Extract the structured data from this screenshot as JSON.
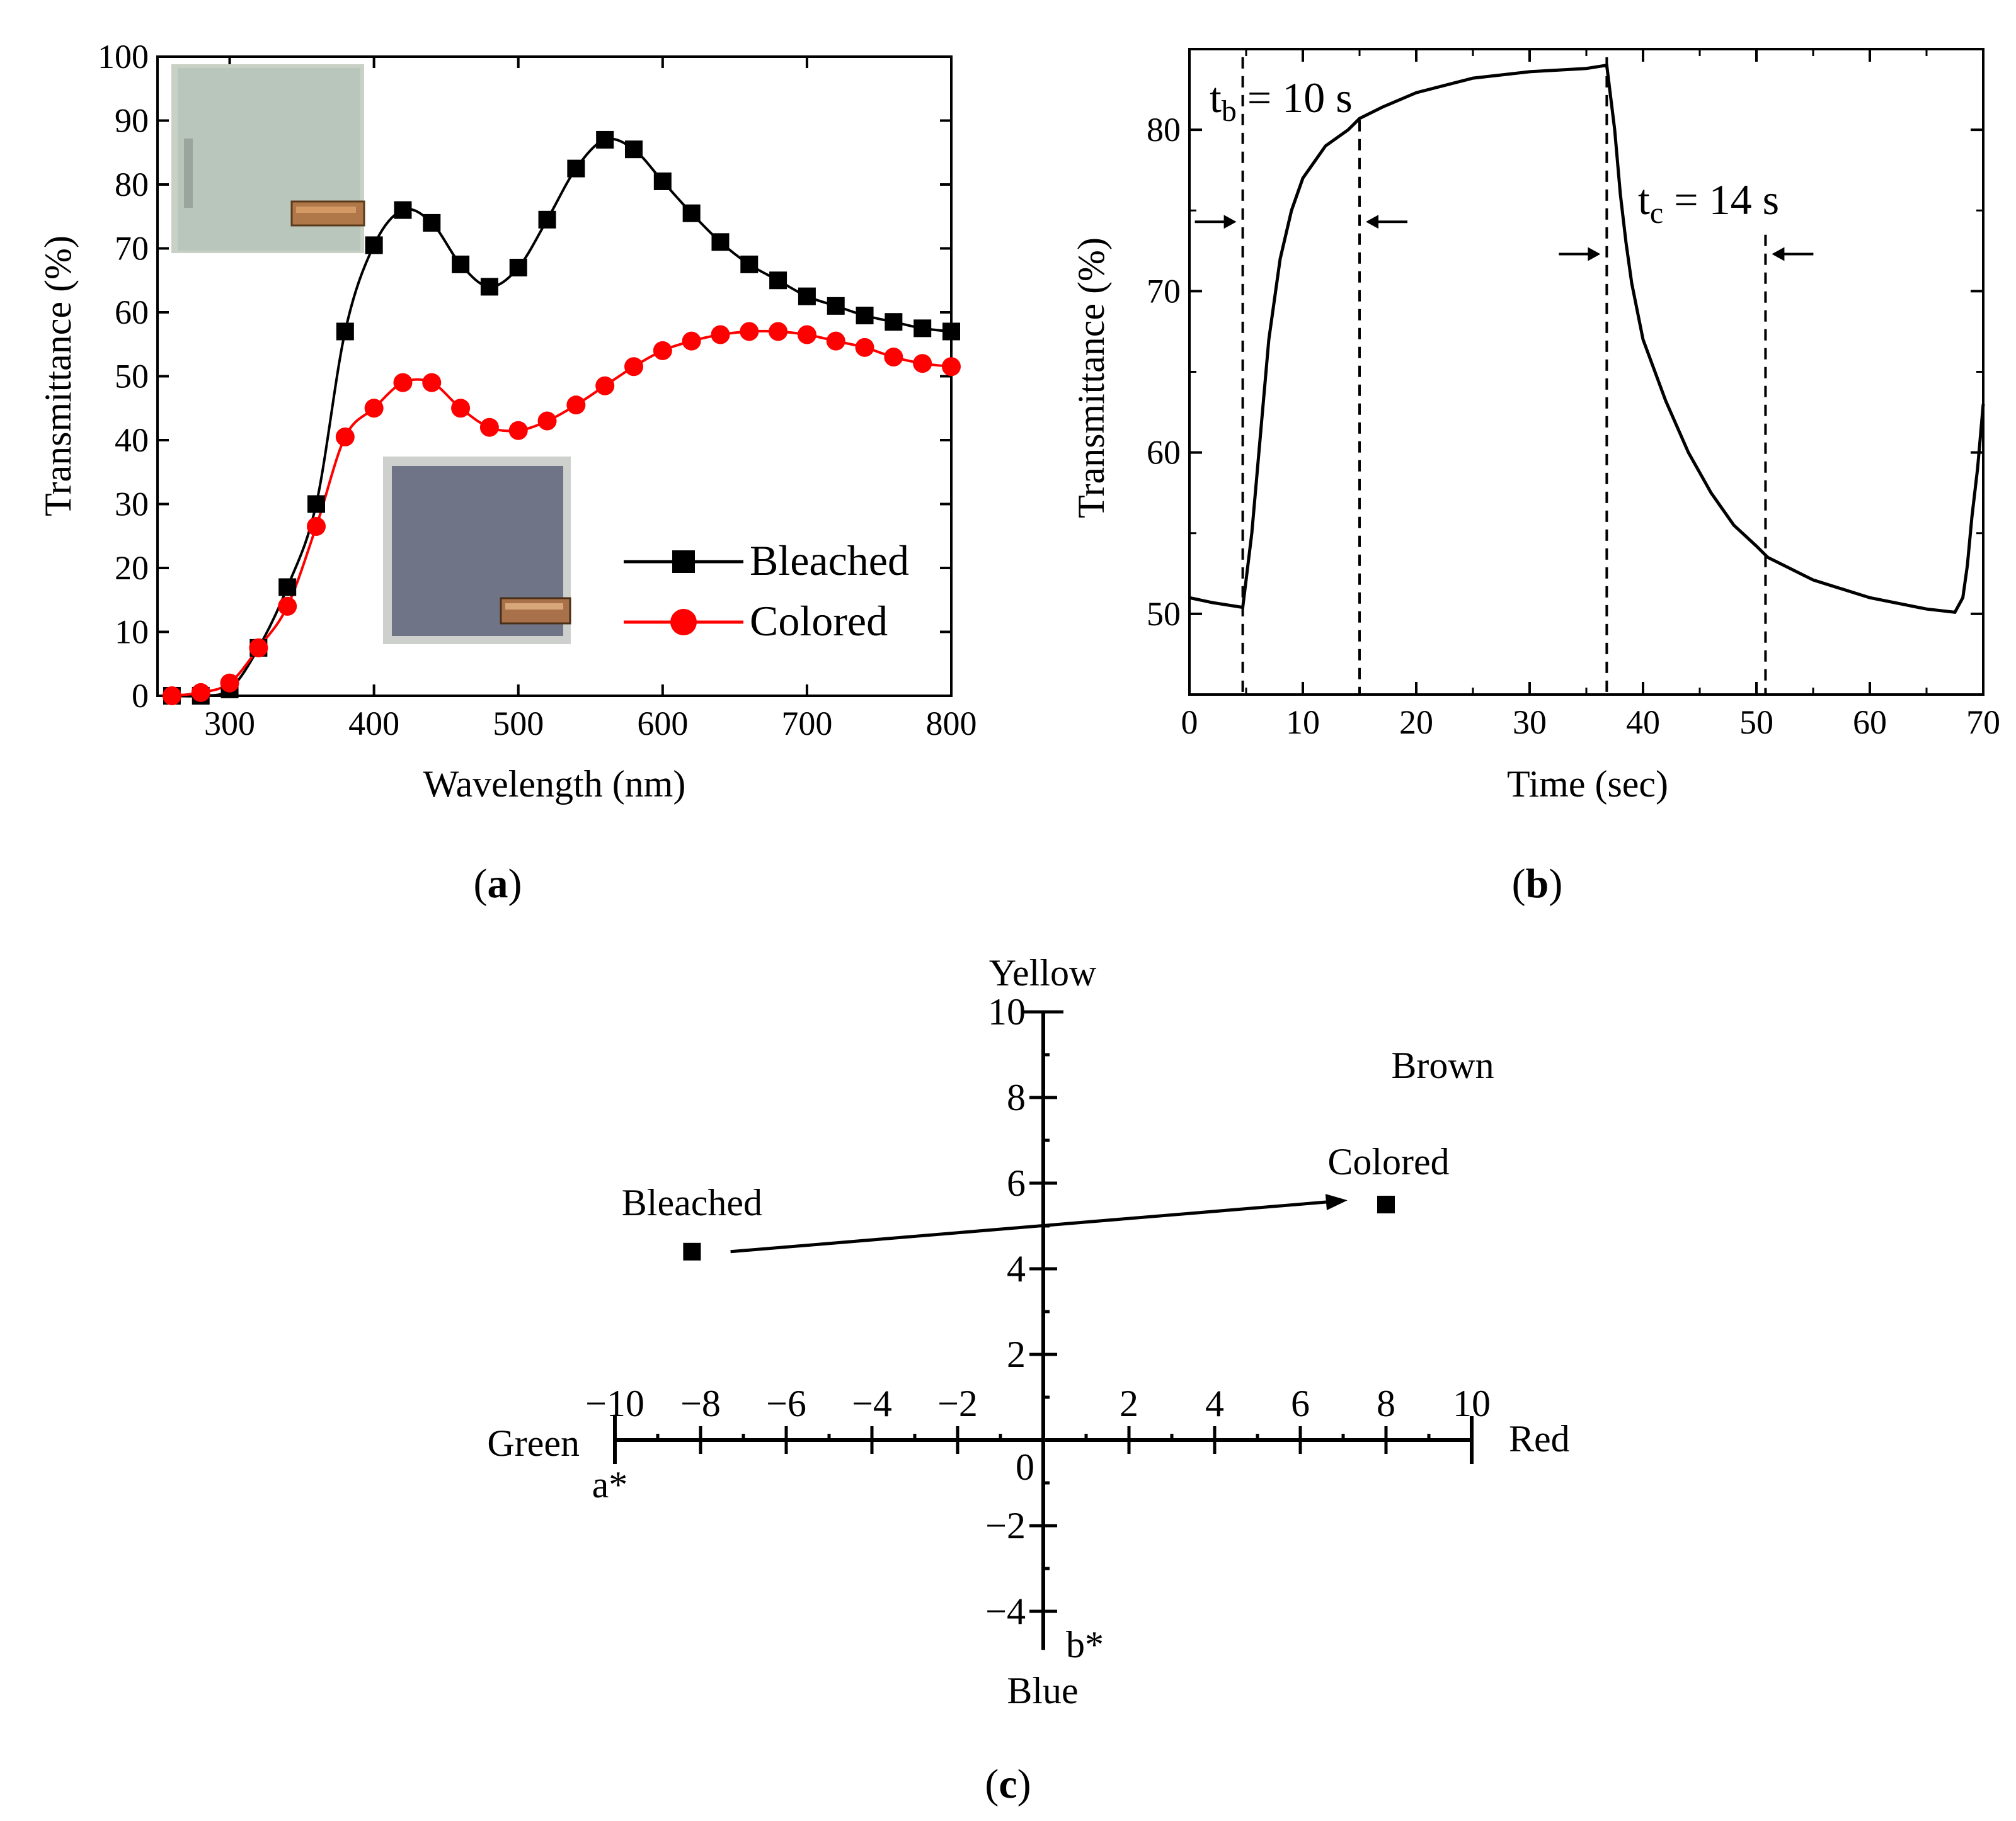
{
  "chart_data": [
    {
      "panel": "a",
      "type": "line",
      "caption": {
        "open": "(",
        "letter": "a",
        "close": ")"
      },
      "xlabel": "Wavelength (nm)",
      "ylabel": "Transmittance (%)",
      "xlim": [
        250,
        800
      ],
      "ylim": [
        0,
        100
      ],
      "xticks": [
        300,
        400,
        500,
        600,
        700,
        800
      ],
      "yticks": [
        0,
        10,
        20,
        30,
        40,
        50,
        60,
        70,
        80,
        90,
        100
      ],
      "legend_position": "lower-right",
      "insets": [
        "bleached sample photo (top-left)",
        "colored sample photo (lower-middle)"
      ],
      "series": [
        {
          "name": "Bleached",
          "color": "#000000",
          "marker": "square",
          "x": [
            260,
            280,
            300,
            320,
            340,
            360,
            380,
            400,
            420,
            440,
            460,
            480,
            500,
            520,
            540,
            560,
            580,
            600,
            620,
            640,
            660,
            680,
            700,
            720,
            740,
            760,
            780,
            800
          ],
          "y": [
            0,
            0,
            1,
            7.5,
            17,
            30,
            57,
            70.5,
            76,
            74,
            67.5,
            64,
            67,
            74.5,
            82.5,
            87,
            85.5,
            80.5,
            75.5,
            71,
            67.5,
            65,
            62.5,
            61,
            59.5,
            58.5,
            57.5,
            57
          ]
        },
        {
          "name": "Colored",
          "color": "#ff0000",
          "marker": "circle",
          "x": [
            260,
            280,
            300,
            320,
            340,
            360,
            380,
            400,
            420,
            440,
            460,
            480,
            500,
            520,
            540,
            560,
            580,
            600,
            620,
            640,
            660,
            680,
            700,
            720,
            740,
            760,
            780,
            800
          ],
          "y": [
            0,
            0.5,
            2,
            7.5,
            14,
            26.5,
            40.5,
            45,
            49,
            49,
            45,
            42,
            41.5,
            43,
            45.5,
            48.5,
            51.5,
            54,
            55.5,
            56.5,
            57,
            57,
            56.5,
            55.5,
            54.5,
            53,
            52,
            51.5
          ]
        }
      ]
    },
    {
      "panel": "b",
      "type": "line",
      "caption": {
        "open": "(",
        "letter": "b",
        "close": ")"
      },
      "xlabel": "Time (sec)",
      "ylabel": "Transmittance (%)",
      "xlim": [
        0,
        70
      ],
      "ylim": [
        45,
        85
      ],
      "xticks": [
        0,
        10,
        20,
        30,
        40,
        50,
        60,
        70
      ],
      "yticks": [
        50,
        60,
        70,
        80
      ],
      "series": [
        {
          "name": "Transmittance",
          "color": "#000000",
          "x": [
            0,
            2,
            4.7,
            5.5,
            6,
            7,
            8,
            9,
            10,
            12,
            14,
            15,
            17,
            20,
            25,
            30,
            35,
            36.8,
            37.5,
            38,
            38.5,
            39,
            40,
            42,
            44,
            46,
            48,
            50,
            51,
            55,
            60,
            65,
            67.5,
            68.2,
            68.6,
            69,
            69.5,
            70
          ],
          "y": [
            51,
            50.7,
            50.4,
            55,
            59,
            67,
            72,
            75,
            77,
            79,
            80,
            80.7,
            81.4,
            82.3,
            83.2,
            83.6,
            83.8,
            84,
            80,
            76,
            73,
            70.5,
            67,
            63.2,
            60,
            57.5,
            55.5,
            54.2,
            53.5,
            52.1,
            51,
            50.3,
            50.1,
            51,
            53,
            56,
            59,
            63
          ]
        }
      ],
      "markers": [
        {
          "x": 4.7,
          "arrow": "right"
        },
        {
          "x": 15,
          "arrow": "left"
        },
        {
          "x": 36.8,
          "arrow": "right"
        },
        {
          "x": 50.8,
          "arrow": "left"
        }
      ],
      "annotations": [
        {
          "base": "t",
          "sub": "b",
          "rest": " = 10 s"
        },
        {
          "base": "t",
          "sub": "c",
          "rest": " = 14 s"
        }
      ]
    },
    {
      "panel": "c",
      "type": "scatter",
      "caption": {
        "open": "(",
        "letter": "c",
        "close": ")"
      },
      "xlabel": "a*",
      "ylabel": "b*",
      "origin_label": "0",
      "xlim": [
        -10,
        10
      ],
      "ylim": [
        -5,
        10
      ],
      "xticks": [
        -10,
        -8,
        -6,
        -4,
        -2,
        2,
        4,
        6,
        8,
        10
      ],
      "xtick_labels": [
        "−10",
        "−8",
        "−6",
        "−4",
        "−2",
        "2",
        "4",
        "6",
        "8",
        "10"
      ],
      "yticks": [
        -4,
        -2,
        2,
        4,
        6,
        8,
        10
      ],
      "ytick_labels": [
        "−4",
        "−2",
        "2",
        "4",
        "6",
        "8",
        "10"
      ],
      "direction_labels": {
        "left": "Green",
        "right": "Red",
        "top": "Yellow",
        "bottom": "Blue"
      },
      "region_label": "Brown",
      "points": [
        {
          "name": "Bleached",
          "a": -8.2,
          "b": 4.4
        },
        {
          "name": "Colored",
          "a": 8,
          "b": 5.5
        }
      ],
      "arrow": {
        "from": [
          -7.3,
          4.4
        ],
        "to": [
          7.1,
          5.6
        ]
      }
    }
  ]
}
